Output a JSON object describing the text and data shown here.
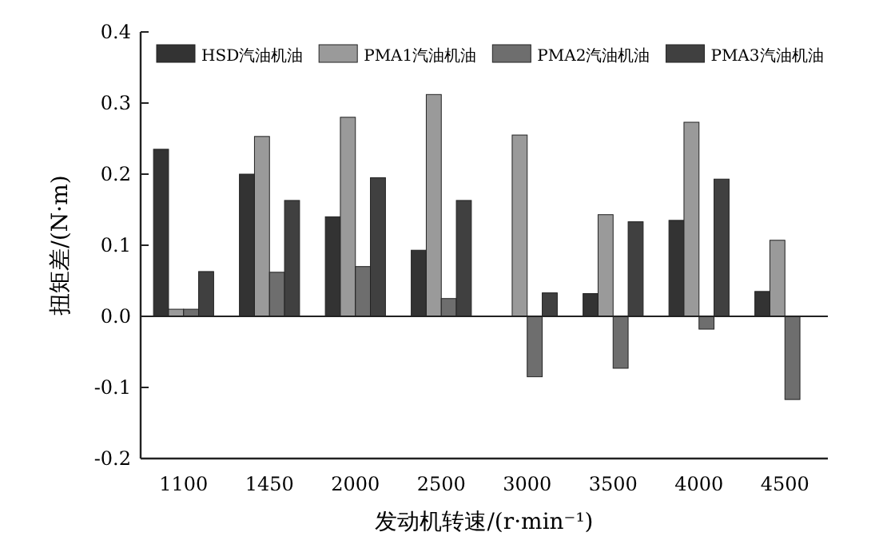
{
  "chart_data": {
    "type": "bar",
    "xlabel": "发动机转速/(r·min⁻¹)",
    "ylabel": "扭矩差/(N·m)",
    "categories": [
      "1100",
      "1450",
      "2000",
      "2500",
      "3000",
      "3500",
      "4000",
      "4500"
    ],
    "series": [
      {
        "name": "HSD汽油机油",
        "color": "#333333",
        "values": [
          0.235,
          0.2,
          0.14,
          0.093,
          0,
          0.032,
          0.135,
          0.035
        ]
      },
      {
        "name": "PMA1汽油机油",
        "color": "#9a9a9a",
        "values": [
          0.01,
          0.253,
          0.28,
          0.312,
          0.255,
          0.143,
          0.273,
          0.107
        ]
      },
      {
        "name": "PMA2汽油机油",
        "color": "#6e6e6e",
        "values": [
          0.01,
          0.062,
          0.07,
          0.025,
          -0.085,
          -0.073,
          -0.018,
          -0.117
        ]
      },
      {
        "name": "PMA3汽油机油",
        "color": "#404040",
        "values": [
          0.063,
          0.163,
          0.195,
          0.163,
          0.033,
          0.133,
          0.193,
          0
        ]
      }
    ],
    "ylim": [
      -0.2,
      0.4
    ],
    "yticks": [
      {
        "value": -0.2,
        "label": "-0.2"
      },
      {
        "value": -0.1,
        "label": "-0.1"
      },
      {
        "value": 0,
        "label": "0.0"
      },
      0.1,
      0.2,
      0.3,
      0.4
    ],
    "legend": "top",
    "ref_lines": [
      {
        "axis": "y",
        "value": 0,
        "color": "#222222"
      }
    ]
  }
}
